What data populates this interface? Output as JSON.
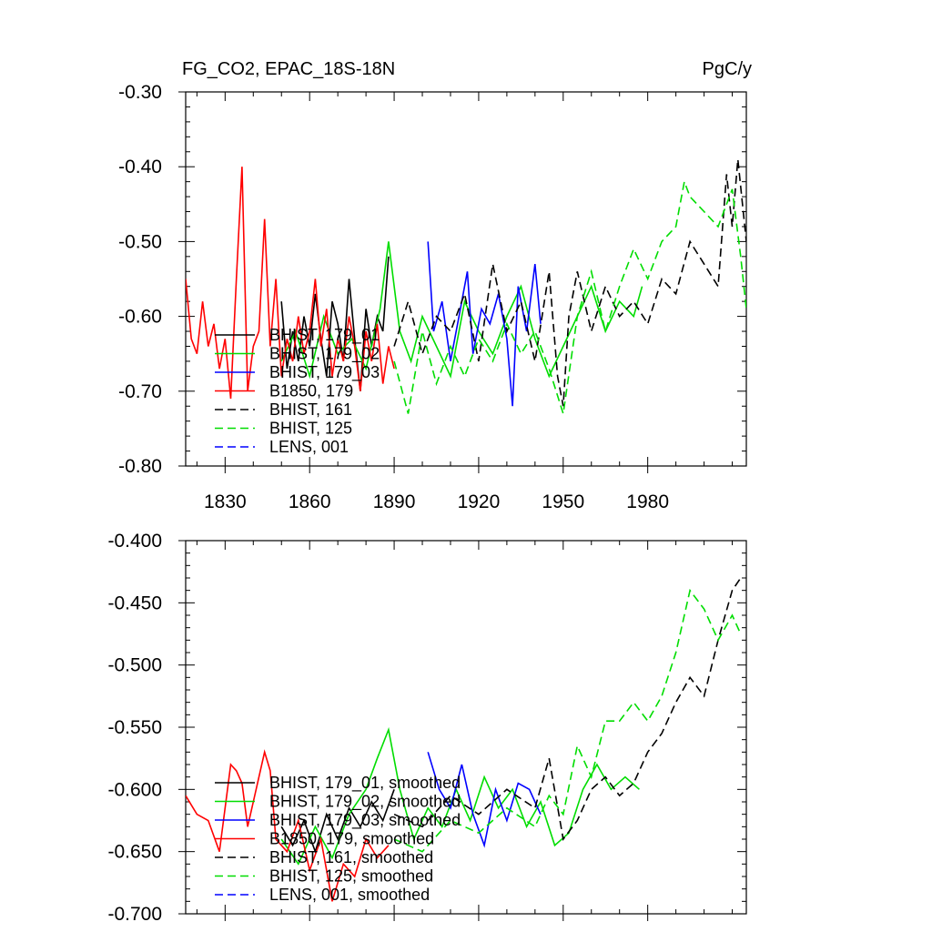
{
  "figure": {
    "title_left": "FG_CO2, EPAC_18S-18N",
    "title_right": "PgC/y"
  },
  "chart_data": [
    {
      "type": "line",
      "panel": "top",
      "title": "FG_CO2, EPAC_18S-18N",
      "units": "PgC/y",
      "xlim": [
        1816,
        2015
      ],
      "ylim": [
        -0.8,
        -0.3
      ],
      "xticks": [
        1830,
        1860,
        1890,
        1920,
        1950,
        1980
      ],
      "yticks": [
        -0.8,
        -0.7,
        -0.6,
        -0.5,
        -0.4,
        -0.3
      ],
      "ytick_labels": [
        "-0.80",
        "-0.70",
        "-0.60",
        "-0.50",
        "-0.40",
        "-0.30"
      ],
      "legend_position": "lower-left",
      "series": [
        {
          "name": "BHIST, 179_01",
          "color": "#000000",
          "dash": "solid",
          "x": [
            1850,
            1852,
            1854,
            1856,
            1858,
            1860,
            1862,
            1864,
            1866,
            1868,
            1870,
            1872,
            1874,
            1876,
            1878,
            1880,
            1882,
            1884,
            1886,
            1888
          ],
          "y": [
            -0.58,
            -0.67,
            -0.62,
            -0.66,
            -0.6,
            -0.64,
            -0.57,
            -0.63,
            -0.68,
            -0.58,
            -0.61,
            -0.66,
            -0.55,
            -0.63,
            -0.7,
            -0.59,
            -0.64,
            -0.6,
            -0.62,
            -0.52
          ]
        },
        {
          "name": "BHIST, 179_02",
          "color": "#00dd00",
          "dash": "solid",
          "x": [
            1850,
            1855,
            1860,
            1865,
            1870,
            1875,
            1880,
            1885,
            1888,
            1892,
            1896,
            1900,
            1905,
            1910,
            1915,
            1920,
            1925,
            1930,
            1935,
            1940,
            1945,
            1950,
            1955,
            1960,
            1965,
            1970,
            1975,
            1978
          ],
          "y": [
            -0.66,
            -0.62,
            -0.68,
            -0.6,
            -0.65,
            -0.63,
            -0.67,
            -0.59,
            -0.5,
            -0.62,
            -0.66,
            -0.6,
            -0.64,
            -0.68,
            -0.58,
            -0.62,
            -0.65,
            -0.6,
            -0.56,
            -0.63,
            -0.68,
            -0.64,
            -0.6,
            -0.56,
            -0.62,
            -0.58,
            -0.6,
            -0.56
          ]
        },
        {
          "name": "BHIST, 179_03",
          "color": "#0000ff",
          "dash": "solid",
          "x": [
            1902,
            1904,
            1907,
            1910,
            1913,
            1916,
            1918,
            1921,
            1924,
            1927,
            1930,
            1932,
            1934,
            1937,
            1940,
            1942
          ],
          "y": [
            -0.5,
            -0.62,
            -0.58,
            -0.66,
            -0.6,
            -0.54,
            -0.65,
            -0.59,
            -0.61,
            -0.57,
            -0.63,
            -0.72,
            -0.56,
            -0.62,
            -0.53,
            -0.61
          ]
        },
        {
          "name": "B1850, 179",
          "color": "#ff0000",
          "dash": "solid",
          "x": [
            1816,
            1818,
            1820,
            1822,
            1824,
            1826,
            1828,
            1830,
            1832,
            1834,
            1836,
            1838,
            1840,
            1842,
            1844,
            1846,
            1848,
            1850,
            1852,
            1854,
            1856,
            1858,
            1860,
            1862,
            1864,
            1866,
            1868,
            1870,
            1872,
            1874,
            1876,
            1878,
            1880,
            1882,
            1884,
            1886,
            1888,
            1890
          ],
          "y": [
            -0.55,
            -0.63,
            -0.65,
            -0.58,
            -0.64,
            -0.61,
            -0.67,
            -0.63,
            -0.71,
            -0.55,
            -0.4,
            -0.7,
            -0.64,
            -0.62,
            -0.47,
            -0.64,
            -0.55,
            -0.68,
            -0.63,
            -0.66,
            -0.6,
            -0.65,
            -0.62,
            -0.55,
            -0.64,
            -0.59,
            -0.68,
            -0.63,
            -0.66,
            -0.6,
            -0.64,
            -0.7,
            -0.62,
            -0.66,
            -0.61,
            -0.69,
            -0.64,
            -0.67
          ]
        },
        {
          "name": "BHIST, 161",
          "color": "#000000",
          "dash": "dashed",
          "x": [
            1890,
            1895,
            1900,
            1905,
            1910,
            1915,
            1920,
            1925,
            1930,
            1935,
            1940,
            1945,
            1948,
            1950,
            1952,
            1955,
            1960,
            1965,
            1970,
            1975,
            1980,
            1985,
            1990,
            1995,
            2000,
            2005,
            2008,
            2010,
            2012,
            2015
          ],
          "y": [
            -0.64,
            -0.58,
            -0.65,
            -0.6,
            -0.62,
            -0.57,
            -0.66,
            -0.53,
            -0.62,
            -0.58,
            -0.66,
            -0.54,
            -0.68,
            -0.72,
            -0.6,
            -0.54,
            -0.62,
            -0.56,
            -0.6,
            -0.58,
            -0.61,
            -0.55,
            -0.57,
            -0.5,
            -0.53,
            -0.56,
            -0.41,
            -0.48,
            -0.39,
            -0.5
          ]
        },
        {
          "name": "BHIST, 125",
          "color": "#00dd00",
          "dash": "dashed",
          "x": [
            1890,
            1895,
            1900,
            1905,
            1910,
            1915,
            1920,
            1925,
            1930,
            1935,
            1940,
            1945,
            1950,
            1955,
            1960,
            1965,
            1970,
            1975,
            1980,
            1985,
            1990,
            1993,
            1995,
            2000,
            2005,
            2010,
            2013,
            2015
          ],
          "y": [
            -0.66,
            -0.73,
            -0.62,
            -0.69,
            -0.64,
            -0.68,
            -0.63,
            -0.66,
            -0.61,
            -0.65,
            -0.62,
            -0.67,
            -0.73,
            -0.6,
            -0.54,
            -0.62,
            -0.56,
            -0.51,
            -0.55,
            -0.5,
            -0.48,
            -0.42,
            -0.44,
            -0.46,
            -0.48,
            -0.43,
            -0.52,
            -0.59
          ]
        },
        {
          "name": "LENS, 001",
          "color": "#0000ff",
          "dash": "dashed",
          "x": [],
          "y": []
        }
      ]
    },
    {
      "type": "line",
      "panel": "bottom",
      "xlim": [
        1816,
        2015
      ],
      "ylim": [
        -0.7,
        -0.4
      ],
      "xticks": [
        1830,
        1860,
        1890,
        1920,
        1950,
        1980
      ],
      "yticks": [
        -0.7,
        -0.65,
        -0.6,
        -0.55,
        -0.5,
        -0.45,
        -0.4
      ],
      "ytick_labels": [
        "-0.700",
        "-0.650",
        "-0.600",
        "-0.550",
        "-0.500",
        "-0.450",
        "-0.400"
      ],
      "legend_position": "lower-left",
      "series": [
        {
          "name": "BHIST, 179_01, smoothed",
          "color": "#000000",
          "dash": "solid",
          "x": [
            1850,
            1854,
            1858,
            1862,
            1866,
            1870,
            1874,
            1878,
            1882,
            1886,
            1890
          ],
          "y": [
            -0.63,
            -0.645,
            -0.625,
            -0.65,
            -0.62,
            -0.64,
            -0.615,
            -0.63,
            -0.61,
            -0.625,
            -0.6
          ]
        },
        {
          "name": "BHIST, 179_02, smoothed",
          "color": "#00dd00",
          "dash": "solid",
          "x": [
            1850,
            1856,
            1862,
            1868,
            1874,
            1880,
            1884,
            1888,
            1892,
            1897,
            1902,
            1907,
            1912,
            1917,
            1922,
            1927,
            1932,
            1937,
            1942,
            1947,
            1952,
            1957,
            1962,
            1967,
            1972,
            1977
          ],
          "y": [
            -0.64,
            -0.66,
            -0.63,
            -0.655,
            -0.62,
            -0.6,
            -0.575,
            -0.552,
            -0.6,
            -0.64,
            -0.615,
            -0.63,
            -0.6,
            -0.625,
            -0.59,
            -0.615,
            -0.6,
            -0.63,
            -0.61,
            -0.645,
            -0.635,
            -0.6,
            -0.58,
            -0.6,
            -0.59,
            -0.6
          ]
        },
        {
          "name": "BHIST, 179_03, smoothed",
          "color": "#0000ff",
          "dash": "solid",
          "x": [
            1902,
            1906,
            1910,
            1914,
            1918,
            1922,
            1926,
            1930,
            1934,
            1938,
            1942
          ],
          "y": [
            -0.57,
            -0.6,
            -0.615,
            -0.58,
            -0.62,
            -0.645,
            -0.6,
            -0.625,
            -0.595,
            -0.6,
            -0.62
          ]
        },
        {
          "name": "B1850, 179, smoothed",
          "color": "#ff0000",
          "dash": "solid",
          "x": [
            1816,
            1820,
            1824,
            1828,
            1832,
            1834,
            1836,
            1838,
            1840,
            1842,
            1844,
            1846,
            1848,
            1852,
            1856,
            1860,
            1864,
            1868,
            1872,
            1876,
            1880,
            1884,
            1888
          ],
          "y": [
            -0.605,
            -0.62,
            -0.625,
            -0.65,
            -0.58,
            -0.585,
            -0.595,
            -0.63,
            -0.61,
            -0.59,
            -0.57,
            -0.585,
            -0.64,
            -0.65,
            -0.625,
            -0.665,
            -0.64,
            -0.69,
            -0.66,
            -0.67,
            -0.64,
            -0.655,
            -0.645
          ]
        },
        {
          "name": "BHIST, 161, smoothed",
          "color": "#000000",
          "dash": "dashed",
          "x": [
            1890,
            1900,
            1910,
            1920,
            1930,
            1940,
            1945,
            1950,
            1955,
            1960,
            1965,
            1970,
            1975,
            1980,
            1985,
            1990,
            1995,
            2000,
            2005,
            2010,
            2013
          ],
          "y": [
            -0.62,
            -0.63,
            -0.605,
            -0.62,
            -0.6,
            -0.615,
            -0.575,
            -0.64,
            -0.625,
            -0.6,
            -0.59,
            -0.605,
            -0.595,
            -0.57,
            -0.555,
            -0.53,
            -0.51,
            -0.525,
            -0.48,
            -0.44,
            -0.43
          ]
        },
        {
          "name": "BHIST, 125, smoothed",
          "color": "#00dd00",
          "dash": "dashed",
          "x": [
            1890,
            1900,
            1910,
            1920,
            1930,
            1940,
            1945,
            1950,
            1955,
            1960,
            1965,
            1970,
            1975,
            1980,
            1985,
            1990,
            1995,
            2000,
            2005,
            2010,
            2013
          ],
          "y": [
            -0.64,
            -0.65,
            -0.625,
            -0.635,
            -0.615,
            -0.63,
            -0.605,
            -0.62,
            -0.565,
            -0.59,
            -0.545,
            -0.545,
            -0.53,
            -0.545,
            -0.525,
            -0.49,
            -0.44,
            -0.455,
            -0.48,
            -0.46,
            -0.475
          ]
        },
        {
          "name": "LENS, 001, smoothed",
          "color": "#0000ff",
          "dash": "dashed",
          "x": [],
          "y": []
        }
      ]
    }
  ]
}
